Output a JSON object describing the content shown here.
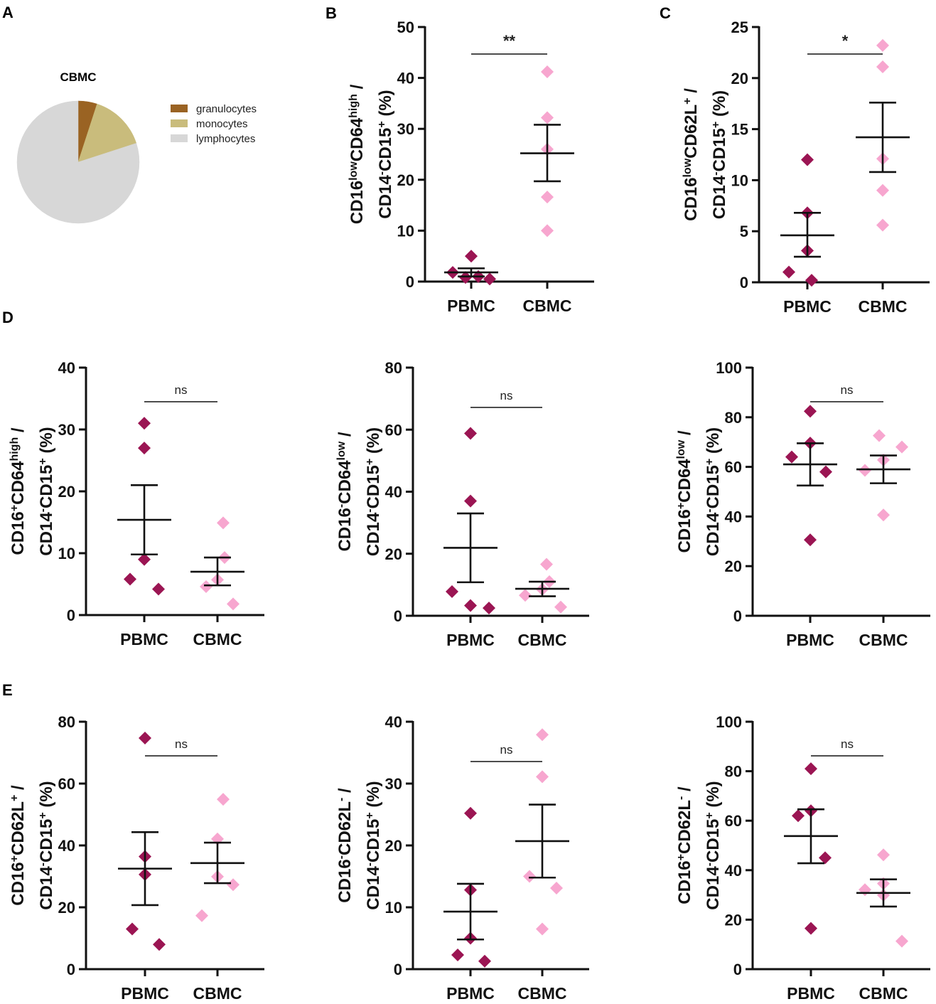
{
  "colors": {
    "pbmc": "#9b1553",
    "cbmc": "#f7a6cf",
    "axis": "#111111",
    "granulocytes": "#9a6323",
    "monocytes": "#c9bc7c",
    "lymphocytes": "#d7d7d7"
  },
  "chart_data": [
    {
      "panel": "A",
      "type": "pie",
      "title": "CBMC",
      "slices": [
        {
          "label": "granulocytes",
          "value": 5,
          "color": "#9a6323"
        },
        {
          "label": "monocytes",
          "value": 15,
          "color": "#c9bc7c"
        },
        {
          "label": "lymphocytes",
          "value": 80,
          "color": "#d7d7d7"
        }
      ]
    },
    {
      "panel": "B",
      "type": "scatter",
      "ylabel": [
        [
          {
            "t": "CD16"
          },
          {
            "t": "low",
            "s": "sup"
          },
          {
            "t": "CD64"
          },
          {
            "t": "high",
            "s": "sup"
          },
          {
            "t": " /"
          }
        ],
        [
          {
            "t": "CD14"
          },
          {
            "t": "-",
            "s": "sup"
          },
          {
            "t": "CD15"
          },
          {
            "t": "+",
            "s": "sup"
          },
          {
            "t": " (%)"
          }
        ]
      ],
      "ylim": [
        0,
        50
      ],
      "yticks": [
        0,
        10,
        20,
        30,
        40,
        50
      ],
      "categories": [
        "PBMC",
        "CBMC"
      ],
      "significance": "**",
      "groups": [
        {
          "name": "PBMC",
          "values": [
            5.0,
            1.8,
            0.8,
            1.0,
            0.5
          ],
          "mean": 1.8,
          "sem_low": 1.0,
          "sem_high": 2.6
        },
        {
          "name": "CBMC",
          "values": [
            41.2,
            32.2,
            26.0,
            16.6,
            10.0
          ],
          "mean": 25.2,
          "sem_low": 19.7,
          "sem_high": 30.8
        }
      ]
    },
    {
      "panel": "C",
      "type": "scatter",
      "ylabel": [
        [
          {
            "t": "CD16"
          },
          {
            "t": "low",
            "s": "sup"
          },
          {
            "t": "CD62L"
          },
          {
            "t": "+",
            "s": "sup"
          },
          {
            "t": " /"
          }
        ],
        [
          {
            "t": "CD14"
          },
          {
            "t": "-",
            "s": "sup"
          },
          {
            "t": "CD15"
          },
          {
            "t": "+",
            "s": "sup"
          },
          {
            "t": " (%)"
          }
        ]
      ],
      "ylim": [
        0,
        25
      ],
      "yticks": [
        0,
        5,
        10,
        15,
        20,
        25
      ],
      "categories": [
        "PBMC",
        "CBMC"
      ],
      "significance": "*",
      "groups": [
        {
          "name": "PBMC",
          "values": [
            12.0,
            6.8,
            3.1,
            1.0,
            0.2
          ],
          "mean": 4.6,
          "sem_low": 2.5,
          "sem_high": 6.8
        },
        {
          "name": "CBMC",
          "values": [
            23.2,
            21.1,
            12.1,
            9.0,
            5.6
          ],
          "mean": 14.2,
          "sem_low": 10.8,
          "sem_high": 17.6
        }
      ]
    },
    {
      "panel": "D",
      "type": "scatter",
      "ylabel": [
        [
          {
            "t": "CD16"
          },
          {
            "t": "+",
            "s": "sup"
          },
          {
            "t": "CD64"
          },
          {
            "t": "high",
            "s": "sup"
          },
          {
            "t": " /"
          }
        ],
        [
          {
            "t": "CD14"
          },
          {
            "t": "-",
            "s": "sup"
          },
          {
            "t": "CD15"
          },
          {
            "t": "+",
            "s": "sup"
          },
          {
            "t": " (%)"
          }
        ]
      ],
      "ylim": [
        0,
        40
      ],
      "yticks": [
        0,
        10,
        20,
        30,
        40
      ],
      "categories": [
        "PBMC",
        "CBMC"
      ],
      "significance": "ns",
      "groups": [
        {
          "name": "PBMC",
          "values": [
            31.0,
            27.0,
            9.0,
            5.8,
            4.2
          ],
          "mean": 15.4,
          "sem_low": 9.8,
          "sem_high": 21.0
        },
        {
          "name": "CBMC",
          "values": [
            14.9,
            9.3,
            5.7,
            4.6,
            1.8
          ],
          "mean": 7.0,
          "sem_low": 4.8,
          "sem_high": 9.3
        }
      ]
    },
    {
      "panel": "",
      "type": "scatter",
      "ylabel": [
        [
          {
            "t": "CD16"
          },
          {
            "t": "-",
            "s": "sup"
          },
          {
            "t": "CD64"
          },
          {
            "t": "low",
            "s": "sup"
          },
          {
            "t": " /"
          }
        ],
        [
          {
            "t": "CD14"
          },
          {
            "t": "-",
            "s": "sup"
          },
          {
            "t": "CD15"
          },
          {
            "t": "+",
            "s": "sup"
          },
          {
            "t": " (%)"
          }
        ]
      ],
      "ylim": [
        0,
        80
      ],
      "yticks": [
        0,
        20,
        40,
        60,
        80
      ],
      "categories": [
        "PBMC",
        "CBMC"
      ],
      "significance": "ns",
      "groups": [
        {
          "name": "PBMC",
          "values": [
            58.8,
            37.0,
            7.8,
            3.3,
            2.5
          ],
          "mean": 21.9,
          "sem_low": 10.8,
          "sem_high": 33.0
        },
        {
          "name": "CBMC",
          "values": [
            16.6,
            11.0,
            8.5,
            6.6,
            2.8
          ],
          "mean": 8.7,
          "sem_low": 6.3,
          "sem_high": 11.0
        }
      ]
    },
    {
      "panel": "",
      "type": "scatter",
      "ylabel": [
        [
          {
            "t": "CD16"
          },
          {
            "t": "+",
            "s": "sup"
          },
          {
            "t": "CD64"
          },
          {
            "t": "low",
            "s": "sup"
          },
          {
            "t": " /"
          }
        ],
        [
          {
            "t": "CD14"
          },
          {
            "t": "-",
            "s": "sup"
          },
          {
            "t": "CD15"
          },
          {
            "t": "+",
            "s": "sup"
          },
          {
            "t": " (%)"
          }
        ]
      ],
      "ylim": [
        0,
        100
      ],
      "yticks": [
        0,
        20,
        40,
        60,
        80,
        100
      ],
      "categories": [
        "PBMC",
        "CBMC"
      ],
      "significance": "ns",
      "groups": [
        {
          "name": "PBMC",
          "values": [
            82.4,
            69.6,
            64.0,
            58.0,
            30.6
          ],
          "mean": 61.0,
          "sem_low": 52.5,
          "sem_high": 69.5
        },
        {
          "name": "CBMC",
          "values": [
            72.6,
            68.0,
            62.8,
            58.6,
            40.6
          ],
          "mean": 59.0,
          "sem_low": 53.4,
          "sem_high": 64.6
        }
      ]
    },
    {
      "panel": "E",
      "type": "scatter",
      "ylabel": [
        [
          {
            "t": "CD16"
          },
          {
            "t": "+",
            "s": "sup"
          },
          {
            "t": "CD62L"
          },
          {
            "t": "+",
            "s": "sup"
          },
          {
            "t": " /"
          }
        ],
        [
          {
            "t": "CD14"
          },
          {
            "t": "-",
            "s": "sup"
          },
          {
            "t": "CD15"
          },
          {
            "t": "+",
            "s": "sup"
          },
          {
            "t": " (%)"
          }
        ]
      ],
      "ylim": [
        0,
        80
      ],
      "yticks": [
        0,
        20,
        40,
        60,
        80
      ],
      "categories": [
        "PBMC",
        "CBMC"
      ],
      "significance": "ns",
      "groups": [
        {
          "name": "PBMC",
          "values": [
            74.7,
            36.4,
            30.6,
            13.0,
            8.0
          ],
          "mean": 32.5,
          "sem_low": 20.7,
          "sem_high": 44.3
        },
        {
          "name": "CBMC",
          "values": [
            54.9,
            42.1,
            29.9,
            27.3,
            17.3
          ],
          "mean": 34.3,
          "sem_low": 27.8,
          "sem_high": 40.9
        }
      ]
    },
    {
      "panel": "",
      "type": "scatter",
      "ylabel": [
        [
          {
            "t": "CD16"
          },
          {
            "t": "-",
            "s": "sup"
          },
          {
            "t": "CD62L"
          },
          {
            "t": "-",
            "s": "sup"
          },
          {
            "t": " /"
          }
        ],
        [
          {
            "t": "CD14"
          },
          {
            "t": "-",
            "s": "sup"
          },
          {
            "t": "CD15"
          },
          {
            "t": "+",
            "s": "sup"
          },
          {
            "t": " (%)"
          }
        ]
      ],
      "ylim": [
        0,
        40
      ],
      "yticks": [
        0,
        10,
        20,
        30,
        40
      ],
      "categories": [
        "PBMC",
        "CBMC"
      ],
      "significance": "ns",
      "groups": [
        {
          "name": "PBMC",
          "values": [
            25.2,
            12.8,
            5.0,
            2.3,
            1.3
          ],
          "mean": 9.3,
          "sem_low": 4.8,
          "sem_high": 13.8
        },
        {
          "name": "CBMC",
          "values": [
            37.9,
            31.1,
            15.0,
            13.1,
            6.5
          ],
          "mean": 20.7,
          "sem_low": 14.8,
          "sem_high": 26.6
        }
      ]
    },
    {
      "panel": "",
      "type": "scatter",
      "ylabel": [
        [
          {
            "t": "CD16"
          },
          {
            "t": "+",
            "s": "sup"
          },
          {
            "t": "CD62L"
          },
          {
            "t": "-",
            "s": "sup"
          },
          {
            "t": " /"
          }
        ],
        [
          {
            "t": "CD14"
          },
          {
            "t": "-",
            "s": "sup"
          },
          {
            "t": "CD15"
          },
          {
            "t": "+",
            "s": "sup"
          },
          {
            "t": " (%)"
          }
        ]
      ],
      "ylim": [
        0,
        100
      ],
      "yticks": [
        0,
        20,
        40,
        60,
        80,
        100
      ],
      "categories": [
        "PBMC",
        "CBMC"
      ],
      "significance": "ns",
      "groups": [
        {
          "name": "PBMC",
          "values": [
            81.0,
            64.0,
            62.0,
            45.0,
            16.5
          ],
          "mean": 53.8,
          "sem_low": 42.8,
          "sem_high": 64.6
        },
        {
          "name": "CBMC",
          "values": [
            46.2,
            34.6,
            32.1,
            29.9,
            11.3
          ],
          "mean": 30.8,
          "sem_low": 25.3,
          "sem_high": 36.3
        }
      ]
    }
  ]
}
